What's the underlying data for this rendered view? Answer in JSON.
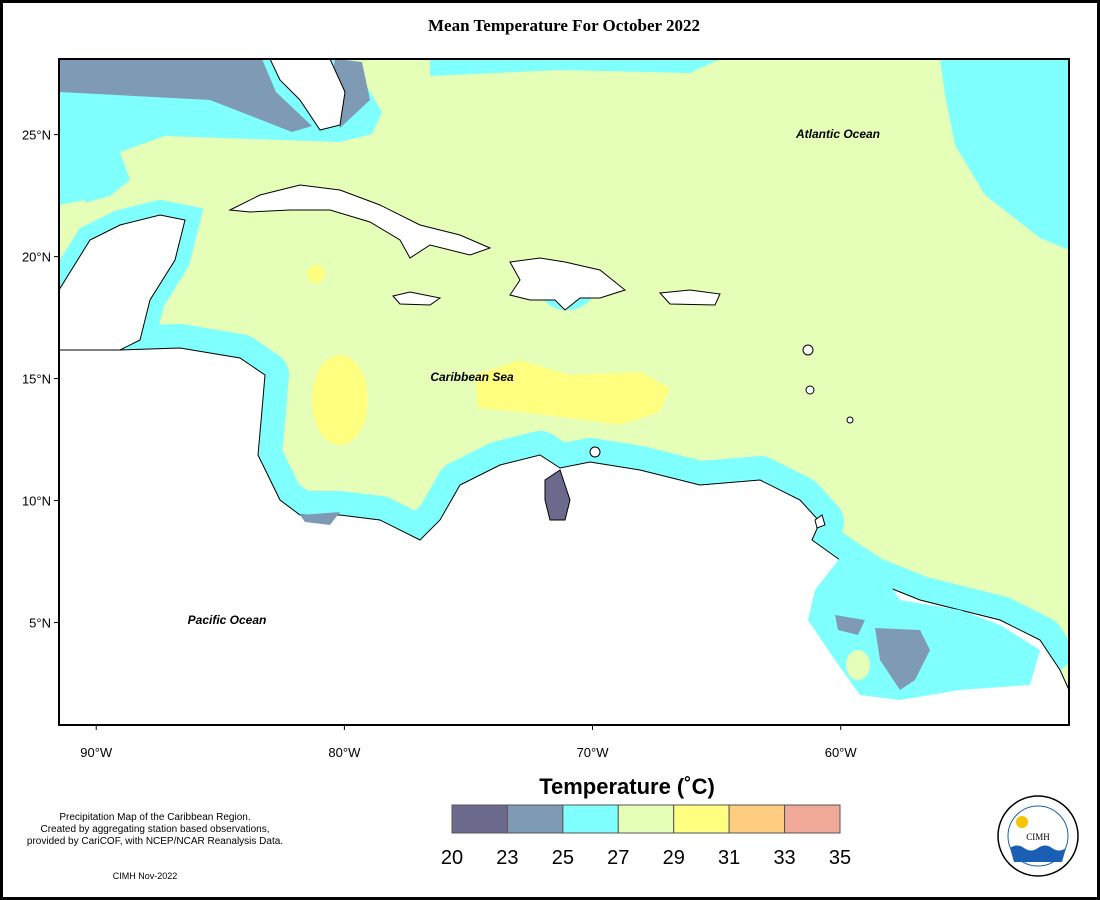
{
  "title": "Mean Temperature For October 2022",
  "map": {
    "xlim": [
      -91.5,
      -50.8
    ],
    "ylim": [
      0.8,
      28.1
    ],
    "xticks": [
      {
        "value": -90,
        "label": "90°W"
      },
      {
        "value": -80,
        "label": "80°W"
      },
      {
        "value": -70,
        "label": "70°W"
      },
      {
        "value": -60,
        "label": "60°W"
      }
    ],
    "yticks": [
      {
        "value": 5,
        "label": "5°N"
      },
      {
        "value": 10,
        "label": "10°N"
      },
      {
        "value": 15,
        "label": "15°N"
      },
      {
        "value": 20,
        "label": "20°N"
      },
      {
        "value": 25,
        "label": "25°N"
      }
    ],
    "labels": [
      "Atlantic Ocean",
      "Caribbean Sea",
      "Pacific Ocean"
    ]
  },
  "legend": {
    "title": "Temperature (˚C)",
    "bounds": [
      20,
      23,
      25,
      27,
      29,
      31,
      33,
      35
    ],
    "colors": [
      "#6b6a8c",
      "#7f9ab5",
      "#80ffff",
      "#e5ffb8",
      "#ffff80",
      "#ffcc80",
      "#f0a898"
    ]
  },
  "notes": [
    "Precipitation Map of the Caribbean Region.",
    "Created by aggregating station based observations,",
    "provided by CariCOF, with NCEP/NCAR Reanalysis Data."
  ],
  "credit": "CIMH Nov-2022",
  "logo": "CIMH"
}
